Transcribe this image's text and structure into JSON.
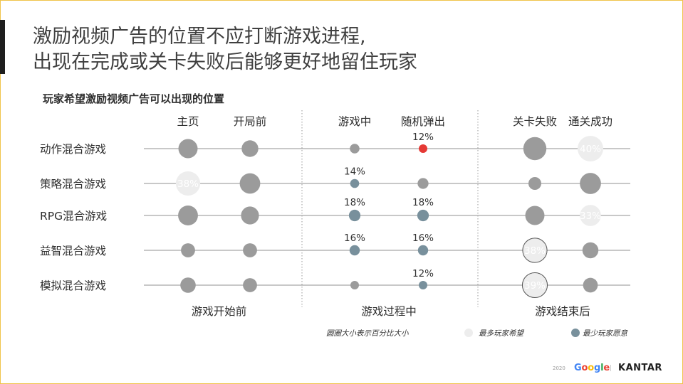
{
  "title": [
    "激励视频广告的位置不应打断游戏进程,",
    "出现在完成或关卡失败后能够更好地留住玩家"
  ],
  "subtitle": "玩家希望激励视频广告可以出现的位置",
  "colors": {
    "default": "#9b9b9b",
    "least": "#78909c",
    "most": "#ededed",
    "highlight": "#e53935",
    "line": "#a8a8a8",
    "divider": "#9a9a9a"
  },
  "legend": {
    "size_note": "圆圈大小表示百分比大小",
    "most_label": "最多玩家希望",
    "least_label": "最少玩家愿意"
  },
  "footer": {
    "year": "2020",
    "google": "Google",
    "kantar": "KANTAR"
  },
  "chart_data": {
    "type": "bubble-matrix",
    "columns": [
      "主页",
      "开局前",
      "游戏中",
      "随机弹出",
      "关卡失败",
      "通关成功"
    ],
    "groups": [
      {
        "label": "游戏开始前",
        "columns": [
          "主页",
          "开局前"
        ]
      },
      {
        "label": "游戏过程中",
        "columns": [
          "游戏中",
          "随机弹出"
        ]
      },
      {
        "label": "游戏结束后",
        "columns": [
          "关卡失败",
          "通关成功"
        ]
      }
    ],
    "rows": [
      {
        "label": "动作混合游戏",
        "values": [
          30,
          26,
          15,
          12,
          36,
          40
        ],
        "value_labels": [
          "",
          "",
          "",
          "12%",
          "",
          "40%"
        ],
        "status": [
          "default",
          "default",
          "default",
          "highlight",
          "default",
          "most"
        ]
      },
      {
        "label": "策略混合游戏",
        "values": [
          38,
          32,
          14,
          17,
          20,
          33
        ],
        "value_labels": [
          "38%",
          "",
          "14%",
          "",
          "",
          ""
        ],
        "status": [
          "most",
          "default",
          "least",
          "default",
          "default",
          "default"
        ]
      },
      {
        "label": "RPG混合游戏",
        "values": [
          31,
          28,
          18,
          18,
          30,
          33
        ],
        "value_labels": [
          "",
          "",
          "18%",
          "18%",
          "",
          "33%"
        ],
        "status": [
          "default",
          "default",
          "least",
          "least",
          "default",
          "most"
        ]
      },
      {
        "label": "益智混合游戏",
        "values": [
          22,
          22,
          16,
          16,
          38,
          25
        ],
        "value_labels": [
          "",
          "",
          "16%",
          "16%",
          "38%",
          ""
        ],
        "status": [
          "default",
          "default",
          "least",
          "least",
          "most",
          "default"
        ]
      },
      {
        "label": "模拟混合游戏",
        "values": [
          24,
          22,
          13,
          12,
          39,
          23
        ],
        "value_labels": [
          "",
          "",
          "",
          "12%",
          "39%",
          ""
        ],
        "status": [
          "default",
          "default",
          "default",
          "least",
          "most",
          "default"
        ]
      }
    ]
  }
}
